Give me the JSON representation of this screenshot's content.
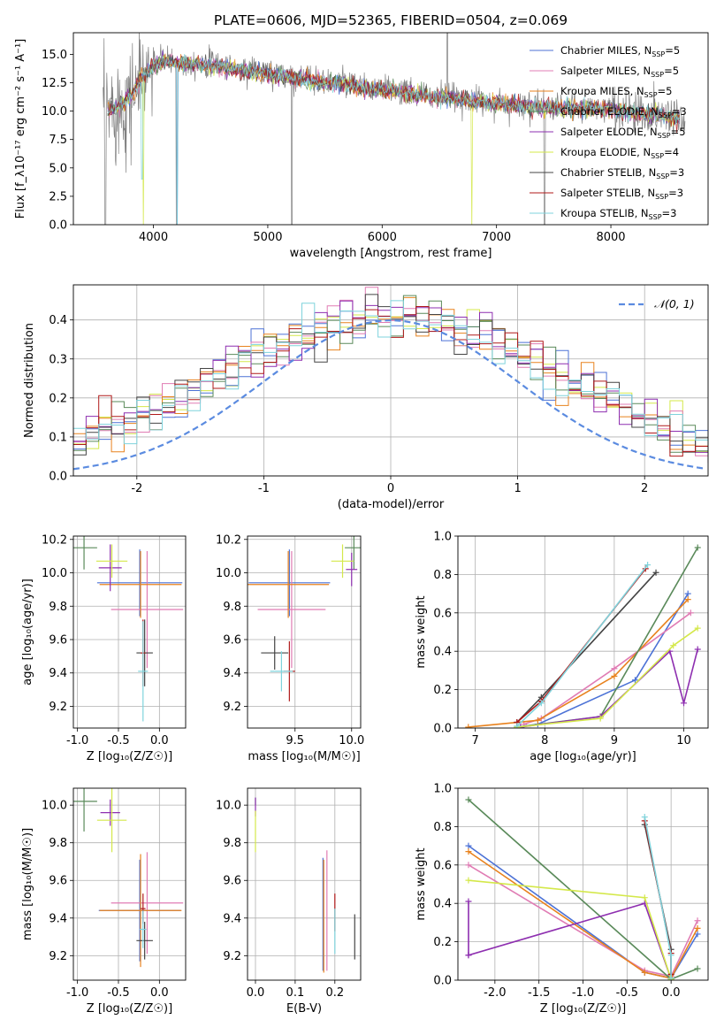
{
  "figure": {
    "title": "PLATE=0606, MJD=52365, FIBERID=0504, z=0.069"
  },
  "colors": {
    "Chabrier MILES": "#4c72d6",
    "Salpeter MILES": "#e07cb4",
    "Kroupa MILES": "#e8821e",
    "Chabrier ELODIE": "#5a8a5a",
    "Salpeter ELODIE": "#8e2fb0",
    "Kroupa ELODIE": "#d4e84a",
    "Chabrier STELIB": "#444444",
    "Salpeter STELIB": "#b01a1a",
    "Kroupa STELIB": "#7fd3dc",
    "data": "#808080",
    "normal": "#5b8be0",
    "grid": "#b0b0b0"
  },
  "chart_data": [
    {
      "id": "spectrum",
      "type": "line",
      "title": "PLATE=0606, MJD=52365, FIBERID=0504, z=0.069",
      "xlabel": "wavelength [Angstrom, rest frame]",
      "ylabel": "Flux [f_λ10⁻¹⁷ erg cm⁻² s⁻¹ A⁻¹]",
      "xlim": [
        3300,
        8850
      ],
      "ylim": [
        0,
        16.9
      ],
      "xticks": [
        4000,
        5000,
        6000,
        7000,
        8000
      ],
      "yticks": [
        0.0,
        2.5,
        5.0,
        7.5,
        10.0,
        12.5,
        15.0
      ],
      "grid": false,
      "legend_position": "top-right",
      "legend": [
        {
          "name": "Chabrier MILES",
          "nssp": "5"
        },
        {
          "name": "Salpeter MILES",
          "nssp": "5"
        },
        {
          "name": "Kroupa MILES",
          "nssp": "5"
        },
        {
          "name": "Chabrier ELODIE",
          "nssp": "3"
        },
        {
          "name": "Salpeter ELODIE",
          "nssp": "5"
        },
        {
          "name": "Kroupa ELODIE",
          "nssp": "4"
        },
        {
          "name": "Chabrier STELIB",
          "nssp": "3"
        },
        {
          "name": "Salpeter STELIB",
          "nssp": "3"
        },
        {
          "name": "Kroupa STELIB",
          "nssp": "3"
        }
      ],
      "data_continuum": [
        [
          3560,
          9.5
        ],
        [
          3620,
          10.3
        ],
        [
          3700,
          10.5
        ],
        [
          3800,
          11.2
        ],
        [
          3900,
          12.8
        ],
        [
          4000,
          14.2
        ],
        [
          4100,
          14.5
        ],
        [
          4200,
          14.2
        ],
        [
          4300,
          14.2
        ],
        [
          4400,
          14.3
        ],
        [
          4500,
          14.2
        ],
        [
          4700,
          13.9
        ],
        [
          4900,
          13.6
        ],
        [
          5100,
          13.3
        ],
        [
          5300,
          13.0
        ],
        [
          5500,
          12.6
        ],
        [
          5700,
          12.4
        ],
        [
          5900,
          12.0
        ],
        [
          6100,
          11.8
        ],
        [
          6300,
          11.5
        ],
        [
          6500,
          11.3
        ],
        [
          6700,
          11.1
        ],
        [
          6900,
          10.8
        ],
        [
          7100,
          10.7
        ],
        [
          7300,
          10.5
        ],
        [
          7500,
          10.4
        ],
        [
          7700,
          10.2
        ],
        [
          7900,
          10.3
        ],
        [
          8100,
          10.1
        ],
        [
          8300,
          9.8
        ],
        [
          8500,
          9.7
        ],
        [
          8650,
          9.5
        ]
      ],
      "model_continuum": [
        [
          3600,
          10.0
        ],
        [
          3700,
          10.4
        ],
        [
          3800,
          11.3
        ],
        [
          3900,
          13.0
        ],
        [
          4000,
          14.0
        ],
        [
          4100,
          14.4
        ],
        [
          4300,
          14.2
        ],
        [
          4500,
          14.0
        ],
        [
          4700,
          13.7
        ],
        [
          4900,
          13.4
        ],
        [
          5100,
          13.1
        ],
        [
          5300,
          12.8
        ],
        [
          5500,
          12.5
        ],
        [
          5700,
          12.3
        ],
        [
          5900,
          11.9
        ],
        [
          6100,
          11.7
        ],
        [
          6300,
          11.4
        ],
        [
          6500,
          11.2
        ],
        [
          6700,
          11.0
        ],
        [
          6900,
          10.8
        ],
        [
          7100,
          10.6
        ],
        [
          7300,
          10.4
        ],
        [
          7500,
          10.3
        ],
        [
          7700,
          10.2
        ],
        [
          7900,
          10.2
        ],
        [
          8100,
          10.0
        ],
        [
          8300,
          9.8
        ],
        [
          8500,
          9.5
        ],
        [
          8600,
          9.4
        ]
      ]
    },
    {
      "id": "residuals",
      "type": "histogram",
      "xlabel": "(data-model)/error",
      "ylabel": "Normed distribution",
      "xlim": [
        -2.5,
        2.5
      ],
      "ylim": [
        0,
        0.49
      ],
      "xticks": [
        -2,
        -1,
        0,
        1,
        2
      ],
      "yticks": [
        0.0,
        0.1,
        0.2,
        0.3,
        0.4
      ],
      "grid": true,
      "legend_position": "top-right",
      "legend": [
        "𝒩(0, 1)"
      ],
      "bin_width": 0.1,
      "base_density": [
        0.022,
        0.026,
        0.031,
        0.036,
        0.042,
        0.049,
        0.057,
        0.066,
        0.075,
        0.086,
        0.098,
        0.11,
        0.124,
        0.138,
        0.153,
        0.169,
        0.185,
        0.202,
        0.219,
        0.237,
        0.254,
        0.271,
        0.289,
        0.305,
        0.321,
        0.336,
        0.35,
        0.363,
        0.375,
        0.385,
        0.393,
        0.4,
        0.405,
        0.409,
        0.41,
        0.405,
        0.4,
        0.393,
        0.385,
        0.375,
        0.363,
        0.35,
        0.336,
        0.321,
        0.305,
        0.289,
        0.271,
        0.254,
        0.237,
        0.219,
        0.202,
        0.185,
        0.169,
        0.153,
        0.138,
        0.124,
        0.11,
        0.098,
        0.086,
        0.075,
        0.066,
        0.057,
        0.049,
        0.042,
        0.036,
        0.031,
        0.026,
        0.022
      ]
    },
    {
      "id": "age-vs-Z",
      "type": "errorbar",
      "xlabel": "Z [log₁₀(Z/Z☉)]",
      "ylabel": "age  [log₁₀(age/yr)]",
      "xlim": [
        -1.05,
        0.32
      ],
      "ylim": [
        9.07,
        10.22
      ],
      "xticks": [
        -1.0,
        -0.5,
        0.0
      ],
      "yticks": [
        9.2,
        9.4,
        9.6,
        9.8,
        10.0,
        10.2
      ],
      "grid": true,
      "points": [
        {
          "model": "Chabrier MILES",
          "x": -0.24,
          "xerr": 0.52,
          "y": 9.94,
          "yerr": 0.2
        },
        {
          "model": "Salpeter MILES",
          "x": -0.15,
          "xerr": 0.44,
          "y": 9.78,
          "yerr": 0.35
        },
        {
          "model": "Kroupa MILES",
          "x": -0.23,
          "xerr": 0.5,
          "y": 9.93,
          "yerr": 0.2
        },
        {
          "model": "Chabrier ELODIE",
          "x": -0.92,
          "xerr": 0.16,
          "y": 10.15,
          "yerr": 0.13
        },
        {
          "model": "Salpeter ELODIE",
          "x": -0.6,
          "xerr": 0.14,
          "y": 10.03,
          "yerr": 0.14
        },
        {
          "model": "Kroupa ELODIE",
          "x": -0.58,
          "xerr": 0.19,
          "y": 10.07,
          "yerr": 0.1
        },
        {
          "model": "Chabrier STELIB",
          "x": -0.18,
          "xerr": 0.1,
          "y": 9.52,
          "yerr": 0.2
        },
        {
          "model": "Salpeter STELIB",
          "x": -0.2,
          "xerr": 0.03,
          "y": 9.52,
          "yerr": 0.2
        },
        {
          "model": "Kroupa STELIB",
          "x": -0.2,
          "xerr": 0.06,
          "y": 9.41,
          "yerr": 0.3
        }
      ]
    },
    {
      "id": "age-vs-mass",
      "type": "errorbar",
      "xlabel": "mass [log₁₀(M/M☉)]",
      "ylabel": "",
      "xlim": [
        9.08,
        10.08
      ],
      "ylim": [
        9.07,
        10.22
      ],
      "xticks": [
        9.5,
        10.0
      ],
      "yticks": [
        9.2,
        9.4,
        9.6,
        9.8,
        10.0,
        10.2
      ],
      "grid": true,
      "points": [
        {
          "model": "Chabrier MILES",
          "x": 9.45,
          "xerr": 0.36,
          "y": 9.94,
          "yerr": 0.2
        },
        {
          "model": "Salpeter MILES",
          "x": 9.47,
          "xerr": 0.3,
          "y": 9.78,
          "yerr": 0.35
        },
        {
          "model": "Kroupa MILES",
          "x": 9.44,
          "xerr": 0.36,
          "y": 9.93,
          "yerr": 0.2
        },
        {
          "model": "Chabrier ELODIE",
          "x": 10.02,
          "xerr": 0.08,
          "y": 10.15,
          "yerr": 0.13
        },
        {
          "model": "Salpeter ELODIE",
          "x": 10.0,
          "xerr": 0.05,
          "y": 10.02,
          "yerr": 0.1
        },
        {
          "model": "Kroupa ELODIE",
          "x": 9.92,
          "xerr": 0.1,
          "y": 10.07,
          "yerr": 0.1
        },
        {
          "model": "Chabrier STELIB",
          "x": 9.32,
          "xerr": 0.12,
          "y": 9.52,
          "yerr": 0.1
        },
        {
          "model": "Salpeter STELIB",
          "x": 9.45,
          "xerr": 0.05,
          "y": 9.41,
          "yerr": 0.18
        },
        {
          "model": "Kroupa STELIB",
          "x": 9.38,
          "xerr": 0.1,
          "y": 9.41,
          "yerr": 0.12
        }
      ]
    },
    {
      "id": "weight-vs-age",
      "type": "line",
      "xlabel": "age  [log₁₀(age/yr)]",
      "ylabel": "mass weight",
      "xlim": [
        6.75,
        10.35
      ],
      "ylim": [
        0,
        1.0
      ],
      "xticks": [
        7,
        8,
        9,
        10
      ],
      "yticks": [
        0.0,
        0.2,
        0.4,
        0.6,
        0.8,
        1.0
      ],
      "grid": true,
      "series": [
        {
          "model": "Chabrier MILES",
          "x": [
            7.7,
            7.9,
            9.3,
            10.06
          ],
          "y": [
            0.01,
            0.02,
            0.25,
            0.7
          ]
        },
        {
          "model": "Salpeter MILES",
          "x": [
            7.7,
            7.95,
            9.0,
            10.1
          ],
          "y": [
            0.02,
            0.05,
            0.31,
            0.6
          ]
        },
        {
          "model": "Kroupa MILES",
          "x": [
            6.9,
            7.9,
            9.0,
            10.06
          ],
          "y": [
            0.005,
            0.04,
            0.27,
            0.67
          ]
        },
        {
          "model": "Chabrier ELODIE",
          "x": [
            7.6,
            8.8,
            10.2
          ],
          "y": [
            0.005,
            0.06,
            0.94
          ]
        },
        {
          "model": "Salpeter ELODIE",
          "x": [
            7.65,
            8.8,
            9.8,
            10.0,
            10.2
          ],
          "y": [
            0.005,
            0.06,
            0.4,
            0.13,
            0.41
          ]
        },
        {
          "model": "Kroupa ELODIE",
          "x": [
            7.6,
            8.8,
            9.85,
            10.2
          ],
          "y": [
            0.005,
            0.05,
            0.43,
            0.52
          ]
        },
        {
          "model": "Chabrier STELIB",
          "x": [
            7.6,
            7.95,
            9.6
          ],
          "y": [
            0.03,
            0.16,
            0.81
          ]
        },
        {
          "model": "Salpeter STELIB",
          "x": [
            7.6,
            7.95,
            9.45
          ],
          "y": [
            0.03,
            0.14,
            0.83
          ]
        },
        {
          "model": "Kroupa STELIB",
          "x": [
            7.6,
            7.95,
            9.48
          ],
          "y": [
            0.01,
            0.13,
            0.85
          ]
        }
      ]
    },
    {
      "id": "mass-vs-Z",
      "type": "errorbar",
      "xlabel": "Z [log₁₀(Z/Z☉)]",
      "ylabel": "mass [log₁₀(M/M☉)]",
      "xlim": [
        -1.05,
        0.32
      ],
      "ylim": [
        9.07,
        10.09
      ],
      "xticks": [
        -1.0,
        -0.5,
        0.0
      ],
      "yticks": [
        9.2,
        9.4,
        9.6,
        9.8,
        10.0
      ],
      "grid": true,
      "points": [
        {
          "model": "Chabrier MILES",
          "x": -0.24,
          "xerr": 0.5,
          "y": 9.44,
          "yerr": 0.27
        },
        {
          "model": "Salpeter MILES",
          "x": -0.15,
          "xerr": 0.44,
          "y": 9.48,
          "yerr": 0.27
        },
        {
          "model": "Kroupa MILES",
          "x": -0.23,
          "xerr": 0.5,
          "y": 9.44,
          "yerr": 0.3
        },
        {
          "model": "Chabrier ELODIE",
          "x": -0.92,
          "xerr": 0.16,
          "y": 10.02,
          "yerr": 0.16
        },
        {
          "model": "Salpeter ELODIE",
          "x": -0.6,
          "xerr": 0.12,
          "y": 9.96,
          "yerr": 0.07
        },
        {
          "model": "Kroupa ELODIE",
          "x": -0.58,
          "xerr": 0.18,
          "y": 9.92,
          "yerr": 0.17
        },
        {
          "model": "Chabrier STELIB",
          "x": -0.18,
          "xerr": 0.1,
          "y": 9.28,
          "yerr": 0.1
        },
        {
          "model": "Salpeter STELIB",
          "x": -0.2,
          "xerr": 0.03,
          "y": 9.45,
          "yerr": 0.08
        },
        {
          "model": "Kroupa STELIB",
          "x": -0.2,
          "xerr": 0.04,
          "y": 9.34,
          "yerr": 0.1
        }
      ]
    },
    {
      "id": "mass-vs-ebv",
      "type": "errorbar",
      "xlabel": "E(B-V)",
      "ylabel": "",
      "xlim": [
        -0.02,
        0.265
      ],
      "ylim": [
        9.07,
        10.09
      ],
      "xticks": [
        0.0,
        0.1,
        0.2
      ],
      "yticks": [
        9.2,
        9.4,
        9.6,
        9.8,
        10.0
      ],
      "grid": true,
      "points": [
        {
          "model": "Chabrier MILES",
          "x": 0.17,
          "xerr": 0,
          "y": 9.42,
          "yerr": 0.3
        },
        {
          "model": "Salpeter MILES",
          "x": 0.18,
          "xerr": 0,
          "y": 9.44,
          "yerr": 0.32
        },
        {
          "model": "Kroupa MILES",
          "x": 0.172,
          "xerr": 0,
          "y": 9.41,
          "yerr": 0.3
        },
        {
          "model": "Chabrier ELODIE",
          "x": 0.0,
          "xerr": 0,
          "y": 10.02,
          "yerr": 0.02
        },
        {
          "model": "Salpeter ELODIE",
          "x": 0.0,
          "xerr": 0,
          "y": 9.99,
          "yerr": 0.05
        },
        {
          "model": "Kroupa ELODIE",
          "x": 0.0,
          "xerr": 0,
          "y": 9.86,
          "yerr": 0.11
        },
        {
          "model": "Chabrier STELIB",
          "x": 0.25,
          "xerr": 0,
          "y": 9.3,
          "yerr": 0.12
        },
        {
          "model": "Salpeter STELIB",
          "x": 0.2,
          "xerr": 0,
          "y": 9.43,
          "yerr": 0.1
        },
        {
          "model": "Kroupa STELIB",
          "x": 0.2,
          "xerr": 0,
          "y": 9.33,
          "yerr": 0.12
        }
      ]
    },
    {
      "id": "weight-vs-Z",
      "type": "line",
      "xlabel": "Z [log₁₀(Z/Z☉)]",
      "ylabel": "mass weight",
      "xlim": [
        -2.42,
        0.42
      ],
      "ylim": [
        0,
        1.0
      ],
      "xticks": [
        -2.0,
        -1.5,
        -1.0,
        -0.5,
        0.0
      ],
      "yticks": [
        0.0,
        0.2,
        0.4,
        0.6,
        0.8,
        1.0
      ],
      "grid": true,
      "series": [
        {
          "model": "Chabrier MILES",
          "x": [
            -2.3,
            -0.3,
            0.0,
            0.3
          ],
          "y": [
            0.7,
            0.04,
            0.01,
            0.24
          ]
        },
        {
          "model": "Salpeter MILES",
          "x": [
            -2.3,
            -0.3,
            0.0,
            0.3
          ],
          "y": [
            0.6,
            0.05,
            0.02,
            0.31
          ]
        },
        {
          "model": "Kroupa MILES",
          "x": [
            -2.3,
            -0.3,
            0.0,
            0.3
          ],
          "y": [
            0.67,
            0.04,
            0.01,
            0.27
          ]
        },
        {
          "model": "Chabrier ELODIE",
          "x": [
            -2.3,
            0.0,
            0.3
          ],
          "y": [
            0.94,
            0.005,
            0.06
          ]
        },
        {
          "model": "Salpeter ELODIE",
          "x": [
            -2.3,
            -2.3,
            -2.3,
            -0.3,
            0.0
          ],
          "y": [
            0.41,
            0.13,
            0.13,
            0.4,
            0.005
          ]
        },
        {
          "model": "Kroupa ELODIE",
          "x": [
            -2.3,
            -0.3,
            0.0
          ],
          "y": [
            0.52,
            0.43,
            0.005
          ]
        },
        {
          "model": "Chabrier STELIB",
          "x": [
            -0.3,
            0.0,
            0.0
          ],
          "y": [
            0.81,
            0.16,
            0.03
          ]
        },
        {
          "model": "Salpeter STELIB",
          "x": [
            -0.3,
            0.0,
            0.0
          ],
          "y": [
            0.83,
            0.14,
            0.03
          ]
        },
        {
          "model": "Kroupa STELIB",
          "x": [
            -0.3,
            0.0,
            0.0
          ],
          "y": [
            0.85,
            0.13,
            0.01
          ]
        }
      ]
    }
  ]
}
